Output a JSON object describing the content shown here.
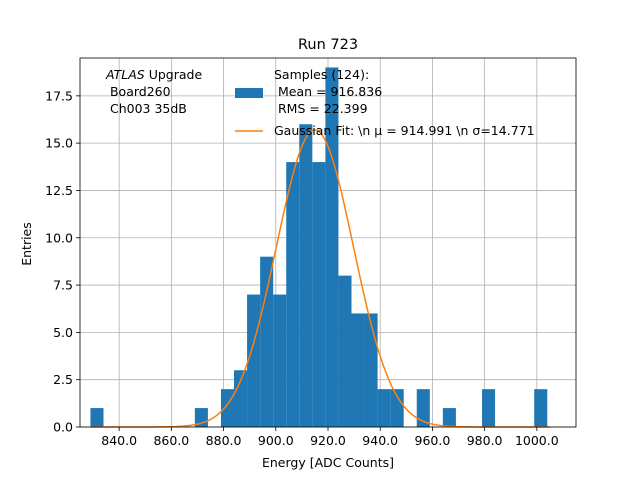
{
  "chart_data": {
    "type": "bar",
    "title": "Run 723",
    "xlabel": "Energy [ADC Counts]",
    "ylabel": "Entries",
    "xlim": [
      825,
      1015
    ],
    "ylim": [
      0,
      19.5
    ],
    "grid": true,
    "xticks": [
      840,
      860,
      880,
      900,
      920,
      940,
      960,
      980,
      1000
    ],
    "xtick_labels": [
      "840.0",
      "860.0",
      "880.0",
      "900.0",
      "920.0",
      "940.0",
      "960.0",
      "980.0",
      "1000.0"
    ],
    "yticks": [
      0,
      2.5,
      5,
      7.5,
      10,
      12.5,
      15,
      17.5
    ],
    "ytick_labels": [
      "0.0",
      "2.5",
      "5.0",
      "7.5",
      "10.0",
      "12.5",
      "15.0",
      "17.5"
    ],
    "histogram": {
      "color": "#1f77b4",
      "bin_edges": [
        829,
        834,
        839,
        844,
        849,
        854,
        859,
        864,
        869,
        874,
        879,
        884,
        889,
        894,
        899,
        904,
        909,
        914,
        919,
        924,
        929,
        934,
        939,
        944,
        949,
        954,
        959,
        964,
        969,
        974,
        979,
        984,
        989,
        994,
        999,
        1004,
        1009
      ],
      "counts": [
        1,
        0,
        0,
        0,
        0,
        0,
        0,
        0,
        1,
        0,
        2,
        3,
        7,
        9,
        7,
        14,
        16,
        14,
        19,
        8,
        6,
        6,
        2,
        2,
        0,
        2,
        0,
        1,
        0,
        0,
        2,
        0,
        0,
        0,
        2,
        0
      ]
    },
    "gaussian_fit": {
      "color": "#ff7f0e",
      "mu": 914.991,
      "sigma": 14.771,
      "amplitude": 15.7,
      "x_range": [
        829,
        1005
      ]
    },
    "legend": {
      "placement": "top-right",
      "entries": [
        {
          "lines": [
            "Samples (124):",
            " Mean = 916.836",
            " RMS = 22.399"
          ],
          "kind": "patch",
          "color": "#1f77b4"
        },
        {
          "lines": [
            "Gaussian Fit: \\n μ = 914.991 \\n σ=14.771"
          ],
          "kind": "line",
          "color": "#ff7f0e"
        }
      ]
    },
    "annotation": {
      "lines": [
        "ATLAS Upgrade",
        " Board260",
        " Ch003 35dB"
      ]
    }
  }
}
